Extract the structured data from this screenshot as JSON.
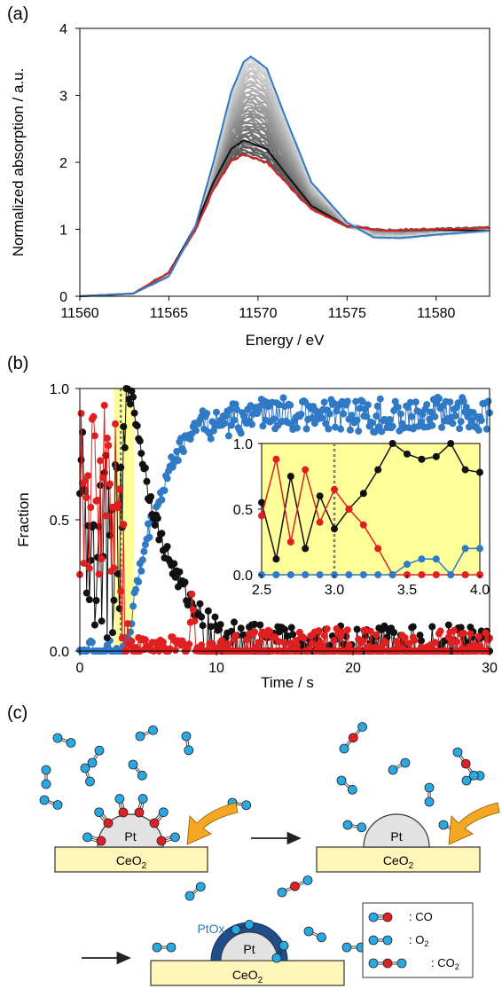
{
  "panels": {
    "a": {
      "label": "(a)"
    },
    "b": {
      "label": "(b)"
    },
    "c": {
      "label": "(c)"
    }
  },
  "chart_data": [
    {
      "id": "xanes",
      "type": "line",
      "xlabel": "Energy / eV",
      "ylabel": "Normalized absorption / a.u.",
      "xlim": [
        11560,
        11583
      ],
      "ylim": [
        0,
        4
      ],
      "xticks": [
        11560,
        11565,
        11570,
        11575,
        11580
      ],
      "yticks": [
        0,
        1,
        2,
        3,
        4
      ],
      "grid": false,
      "gray_series": {
        "count": 40,
        "peak_range": [
          2.2,
          3.65
        ],
        "colors": [
          "#d9d9d9",
          "#555555"
        ]
      },
      "series": [
        {
          "color": "#2f79c5",
          "peak_energy": 11569.6,
          "peak": 3.58,
          "post_edge": 0.98,
          "points": [
            [
              11560,
              0
            ],
            [
              11563,
              0.04
            ],
            [
              11565,
              0.3
            ],
            [
              11566.5,
              1.05
            ],
            [
              11567.5,
              2.0
            ],
            [
              11568.5,
              3.05
            ],
            [
              11569.2,
              3.5
            ],
            [
              11569.6,
              3.58
            ],
            [
              11570.5,
              3.4
            ],
            [
              11571.5,
              2.7
            ],
            [
              11573,
              1.7
            ],
            [
              11575,
              1.1
            ],
            [
              11576.5,
              0.88
            ],
            [
              11578,
              0.87
            ],
            [
              11580,
              0.92
            ],
            [
              11583,
              0.98
            ]
          ]
        },
        {
          "color": "#111111",
          "peak_energy": 11569.2,
          "peak": 2.33,
          "post_edge": 0.98,
          "points": [
            [
              11560,
              0
            ],
            [
              11563,
              0.04
            ],
            [
              11565,
              0.35
            ],
            [
              11566.5,
              1.05
            ],
            [
              11567.5,
              1.7
            ],
            [
              11568.5,
              2.2
            ],
            [
              11569.2,
              2.33
            ],
            [
              11570.5,
              2.2
            ],
            [
              11571.5,
              1.85
            ],
            [
              11573,
              1.35
            ],
            [
              11575,
              1.05
            ],
            [
              11577,
              0.98
            ],
            [
              11580,
              0.99
            ],
            [
              11583,
              0.98
            ]
          ]
        },
        {
          "color": "#e02020",
          "peak_energy": 11569.2,
          "peak": 2.12,
          "post_edge": 1.0,
          "points": [
            [
              11560,
              0
            ],
            [
              11563,
              0.04
            ],
            [
              11565,
              0.35
            ],
            [
              11566.5,
              1.0
            ],
            [
              11567.5,
              1.6
            ],
            [
              11568.5,
              2.02
            ],
            [
              11569.2,
              2.12
            ],
            [
              11570.5,
              2.0
            ],
            [
              11571.5,
              1.72
            ],
            [
              11573,
              1.3
            ],
            [
              11575,
              1.05
            ],
            [
              11577,
              0.98
            ],
            [
              11580,
              1.0
            ],
            [
              11583,
              1.02
            ]
          ]
        }
      ]
    },
    {
      "id": "fraction",
      "type": "scatter",
      "xlabel": "Time / s",
      "ylabel": "Fraction",
      "xlim": [
        0,
        30
      ],
      "ylim": [
        0,
        1.0
      ],
      "xticks": [
        0,
        10,
        20,
        30
      ],
      "yticks": [
        0.0,
        0.5,
        1.0
      ],
      "ytick_labels": [
        "0.0",
        "0.5",
        "1.0"
      ],
      "highlight_range": [
        2.5,
        4.0
      ],
      "highlight_color": "#ffff99",
      "dashed_time": 3.0,
      "series": [
        {
          "color": "#2f79c5",
          "points": [
            [
              0,
              0
            ],
            [
              1,
              0
            ],
            [
              2,
              0
            ],
            [
              3,
              0
            ],
            [
              3.6,
              0.05
            ],
            [
              4,
              0.2
            ],
            [
              5,
              0.45
            ],
            [
              6,
              0.6
            ],
            [
              7,
              0.75
            ],
            [
              8,
              0.82
            ],
            [
              9,
              0.9
            ],
            [
              10,
              0.94
            ],
            [
              12,
              0.96
            ],
            [
              15,
              0.97
            ],
            [
              20,
              0.96
            ],
            [
              25,
              0.97
            ],
            [
              30,
              0.97
            ]
          ]
        },
        {
          "color": "#111111",
          "points": [
            [
              0,
              0.5
            ],
            [
              1,
              0.45
            ],
            [
              2,
              0.4
            ],
            [
              3,
              0.35
            ],
            [
              3.5,
              1.0
            ],
            [
              4,
              0.9
            ],
            [
              5,
              0.6
            ],
            [
              6,
              0.4
            ],
            [
              7,
              0.28
            ],
            [
              8,
              0.18
            ],
            [
              9,
              0.12
            ],
            [
              10,
              0.08
            ],
            [
              12,
              0.05
            ],
            [
              15,
              0.04
            ],
            [
              20,
              0.04
            ],
            [
              25,
              0.04
            ],
            [
              30,
              0.05
            ]
          ]
        },
        {
          "color": "#e02020",
          "points": [
            [
              0,
              0.55
            ],
            [
              1,
              0.6
            ],
            [
              2,
              0.65
            ],
            [
              2.8,
              0.6
            ],
            [
              3.2,
              0.3
            ],
            [
              3.6,
              0
            ],
            [
              5,
              0
            ],
            [
              8,
              0
            ],
            [
              8.2,
              0.2
            ],
            [
              8.5,
              0
            ],
            [
              12,
              0.02
            ],
            [
              15,
              0.03
            ],
            [
              20,
              0.03
            ],
            [
              25,
              0.02
            ],
            [
              30,
              0.03
            ]
          ]
        }
      ],
      "inset": {
        "xlim": [
          2.5,
          4.0
        ],
        "ylim": [
          0,
          1.0
        ],
        "xticks": [
          2.5,
          3.0,
          3.5,
          4.0
        ],
        "xtick_labels": [
          "2.5",
          "3.0",
          "3.5",
          "4.0"
        ],
        "yticks": [
          0.0,
          0.5,
          1.0
        ],
        "ytick_labels": [
          "0.0",
          "0.5",
          "1.0"
        ],
        "dashed_time": 3.0,
        "series": [
          {
            "color": "#111111",
            "points": [
              [
                2.5,
                0.55
              ],
              [
                2.6,
                0.12
              ],
              [
                2.7,
                0.75
              ],
              [
                2.8,
                0.2
              ],
              [
                2.9,
                0.6
              ],
              [
                3.0,
                0.35
              ],
              [
                3.1,
                0.5
              ],
              [
                3.2,
                0.62
              ],
              [
                3.3,
                0.8
              ],
              [
                3.4,
                1.0
              ],
              [
                3.5,
                0.92
              ],
              [
                3.6,
                0.88
              ],
              [
                3.7,
                0.9
              ],
              [
                3.8,
                1.0
              ],
              [
                3.9,
                0.8
              ],
              [
                4.0,
                0.78
              ]
            ]
          },
          {
            "color": "#e02020",
            "points": [
              [
                2.5,
                0.45
              ],
              [
                2.6,
                0.88
              ],
              [
                2.7,
                0.25
              ],
              [
                2.8,
                0.8
              ],
              [
                2.9,
                0.4
              ],
              [
                3.0,
                0.65
              ],
              [
                3.1,
                0.5
              ],
              [
                3.2,
                0.38
              ],
              [
                3.3,
                0.2
              ],
              [
                3.4,
                0.0
              ],
              [
                3.5,
                0.0
              ],
              [
                3.6,
                0.0
              ],
              [
                3.7,
                0.0
              ],
              [
                3.8,
                0.0
              ],
              [
                3.9,
                0.0
              ],
              [
                4.0,
                0.0
              ]
            ]
          },
          {
            "color": "#2f79c5",
            "points": [
              [
                2.5,
                0.0
              ],
              [
                2.6,
                0.0
              ],
              [
                2.7,
                0.0
              ],
              [
                2.8,
                0.0
              ],
              [
                2.9,
                0.0
              ],
              [
                3.0,
                0.0
              ],
              [
                3.1,
                0.0
              ],
              [
                3.2,
                0.0
              ],
              [
                3.3,
                0.0
              ],
              [
                3.4,
                0.0
              ],
              [
                3.5,
                0.08
              ],
              [
                3.6,
                0.12
              ],
              [
                3.7,
                0.12
              ],
              [
                3.8,
                0.0
              ],
              [
                3.9,
                0.2
              ],
              [
                4.0,
                0.2
              ]
            ]
          }
        ]
      }
    }
  ],
  "scheme": {
    "support_label": "CeO",
    "support_sub": "2",
    "particle_label": "Pt",
    "shell_label": "PtOx",
    "legend": [
      {
        "label": ": CO",
        "molecule": "CO"
      },
      {
        "label": ": O",
        "sub": "2",
        "molecule": "O2"
      },
      {
        "label": ": CO",
        "sub": "2",
        "molecule": "CO2"
      }
    ],
    "colors": {
      "support": "#fff5b8",
      "particle": "#e2e2e2",
      "shell": "#1f4e8a",
      "shell_text": "#2f79c5",
      "O_atom": "#29a9e1",
      "C_atom": "#e02020",
      "arrow": "#f5a623"
    }
  }
}
